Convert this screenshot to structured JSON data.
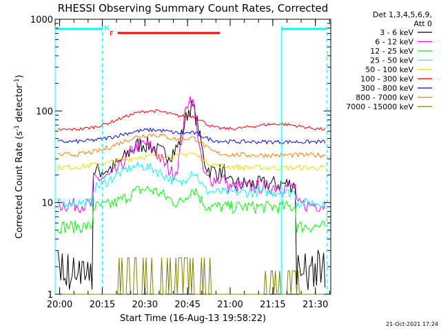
{
  "chart_data": {
    "type": "line",
    "title": "RHESSI Observing Summary Count Rates, Corrected",
    "xlabel": "Start Time (16-Aug-13 19:58:22)",
    "ylabel_main": "Corrected Count Rate (s",
    "ylabel_sup1": "-1",
    "ylabel_mid": " detector",
    "ylabel_sup2": "-1",
    "ylabel_end": ")",
    "yscale": "log",
    "ylim": [
      1,
      1000
    ],
    "xlim_min": [
      0,
      97
    ],
    "x_ticks": [
      {
        "label": "20:00",
        "min": 1.6
      },
      {
        "label": "20:15",
        "min": 16.6
      },
      {
        "label": "20:30",
        "min": 31.6
      },
      {
        "label": "20:45",
        "min": 46.6
      },
      {
        "label": "21:00",
        "min": 61.6
      },
      {
        "label": "21:15",
        "min": 76.6
      },
      {
        "label": "21:30",
        "min": 91.6
      }
    ],
    "y_ticks": [
      {
        "label": "1",
        "v": 1
      },
      {
        "label": "10",
        "v": 10
      },
      {
        "label": "100",
        "v": 100
      },
      {
        "label": "1000",
        "v": 1000
      }
    ],
    "legend_header_1": "Det 1,3,4,5,6,9,",
    "legend_header_2": "Att 0",
    "legend_position": "top-right",
    "series": [
      {
        "name": "3 - 6 keV",
        "color": "#000000"
      },
      {
        "name": "6 - 12 keV",
        "color": "#ff00ff"
      },
      {
        "name": "12 - 25 keV",
        "color": "#00ff00"
      },
      {
        "name": "25 - 50 keV",
        "color": "#00ffff"
      },
      {
        "name": "50 - 100 keV",
        "color": "#e0e000"
      },
      {
        "name": "100 - 300 keV",
        "color": "#ff0000"
      },
      {
        "name": "300 - 800 keV",
        "color": "#0000ff"
      },
      {
        "name": "800 - 7000 keV",
        "color": "#ff8000"
      },
      {
        "name": "7000 - 15000 keV",
        "color": "#808000"
      }
    ],
    "markers": {
      "night_label": "N",
      "flare_label": "F"
    },
    "timestamp": "21-Oct-2021 17:24"
  }
}
